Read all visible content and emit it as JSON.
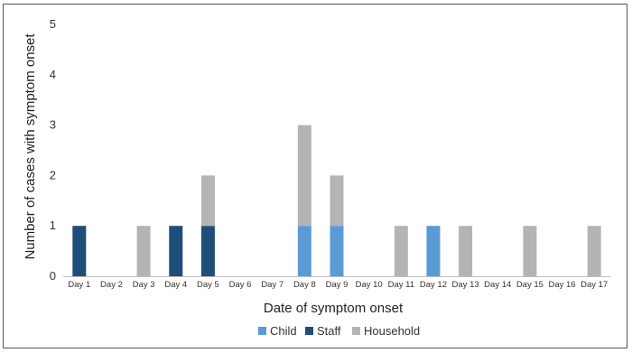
{
  "chart_data": {
    "type": "bar",
    "stacked": true,
    "title": "",
    "xlabel": "Date of symptom onset",
    "ylabel": "Number of cases with symptom onset",
    "ylim": [
      0,
      5
    ],
    "yticks": [
      "0",
      "1",
      "2",
      "3",
      "4",
      "5"
    ],
    "grid": false,
    "legend_position": "bottom",
    "categories": [
      "Day 1",
      "Day 2",
      "Day 3",
      "Day 4",
      "Day 5",
      "Day 6",
      "Day 7",
      "Day 8",
      "Day 9",
      "Day 10",
      "Day 11",
      "Day 12",
      "Day 13",
      "Day 14",
      "Day 15",
      "Day 16",
      "Day 17"
    ],
    "series": [
      {
        "name": "Child",
        "color": "#5b9bd5",
        "values": [
          0,
          0,
          0,
          0,
          0,
          0,
          0,
          1,
          1,
          0,
          0,
          1,
          0,
          0,
          0,
          0,
          0
        ]
      },
      {
        "name": "Staff",
        "color": "#1f4e79",
        "values": [
          1,
          0,
          0,
          1,
          1,
          0,
          0,
          0,
          0,
          0,
          0,
          0,
          0,
          0,
          0,
          0,
          0
        ]
      },
      {
        "name": "Household",
        "color": "#b4b4b8",
        "values": [
          0,
          0,
          1,
          0,
          1,
          0,
          0,
          2,
          1,
          0,
          1,
          0,
          1,
          0,
          1,
          0,
          1
        ]
      }
    ]
  }
}
